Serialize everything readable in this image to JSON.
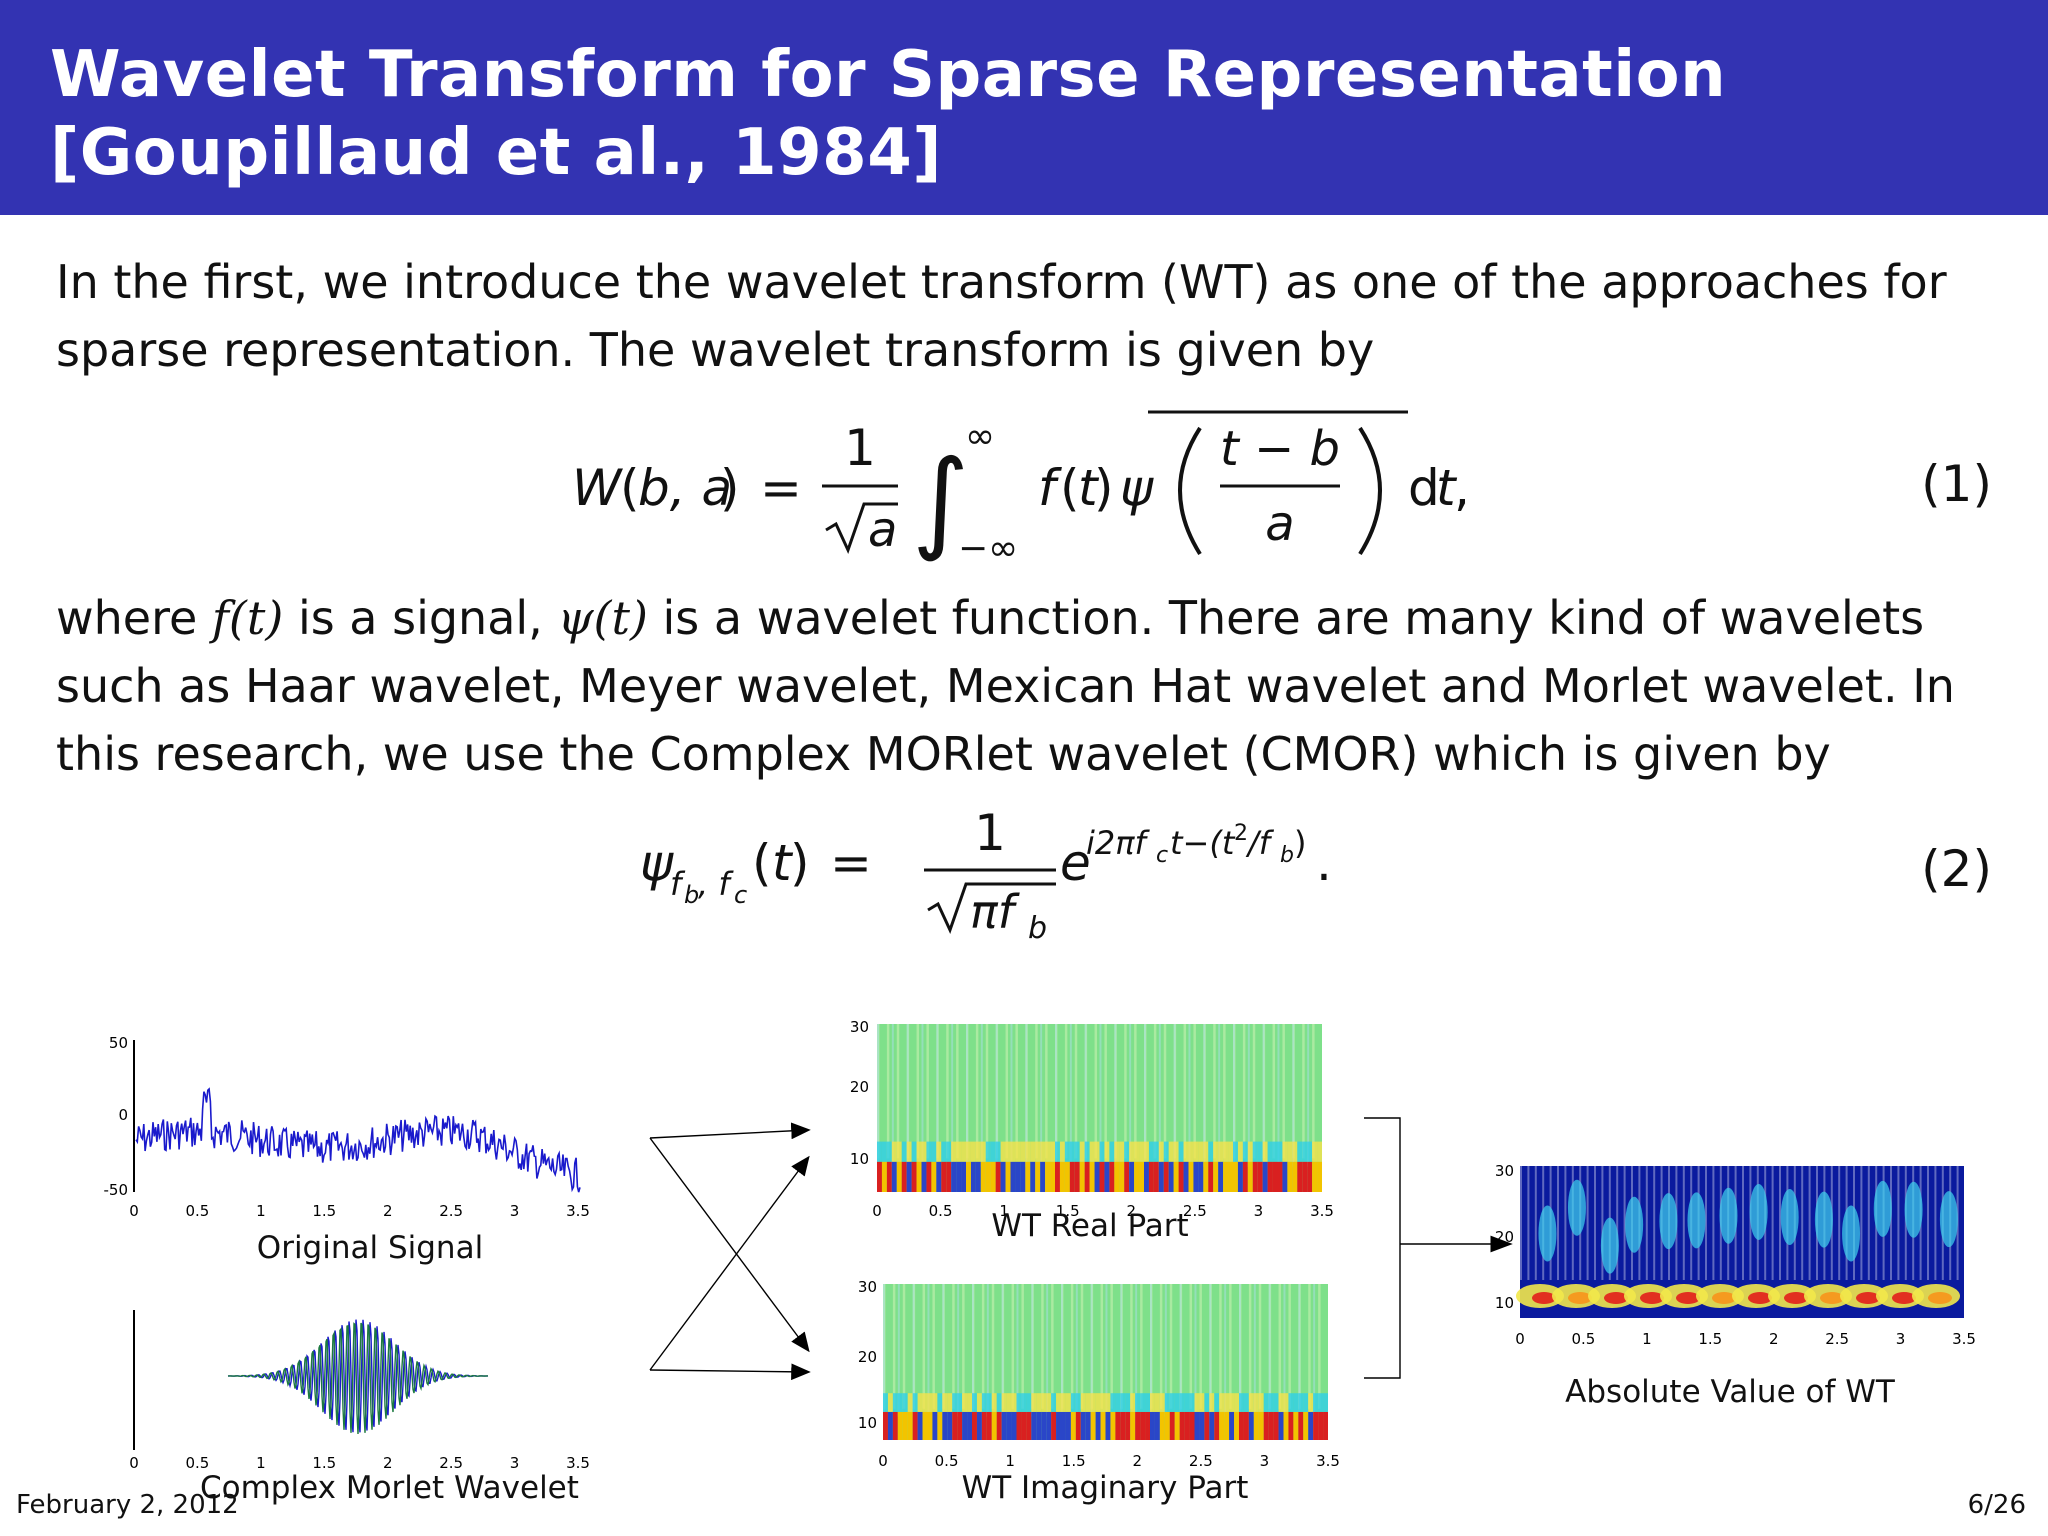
{
  "header": {
    "title_line1": "Wavelet Transform for Sparse Representation",
    "title_line2": "[Goupillaud et al., 1984]"
  },
  "body": {
    "para1_line1": "In the first, we introduce the wavelet transform (WT) as one of the approaches for",
    "para1_line2": "sparse representation.  The wavelet transform is given by",
    "eq1_number": "(1)",
    "para2_prefix": "where",
    "para2_f": "f(t)",
    "para2_mid1": "is a signal,",
    "para2_psi": "ψ(t)",
    "para2_mid2": "is a wavelet function.  There are many kind of wavelets",
    "para2_line2": "such as Haar wavelet, Meyer wavelet, Mexican Hat wavelet and Morlet wavelet.  In",
    "para2_line3": "this research, we use the Complex MORlet wavelet (CMOR) which is given by",
    "eq2_number": "(2)"
  },
  "figures": {
    "signal_caption": "Original Signal",
    "morlet_caption": "Complex Morlet Wavelet",
    "real_caption": "WT Real Part",
    "imag_caption": "WT Imaginary Part",
    "abs_caption": "Absolute Value of WT",
    "signal_ticks_y": [
      "50",
      "0",
      "-50"
    ],
    "x_ticks": [
      "0",
      "0.5",
      "1",
      "1.5",
      "2",
      "2.5",
      "3",
      "3.5"
    ],
    "scale_ticks": [
      "30",
      "20",
      "10"
    ]
  },
  "footer": {
    "date": "February 2, 2012",
    "page": "6/26"
  },
  "colors": {
    "header_bg": "#3333b2",
    "signal_line": "#1a1acc",
    "arrow": "#000000"
  }
}
